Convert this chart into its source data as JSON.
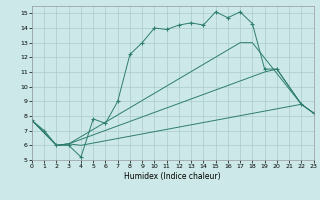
{
  "xlabel": "Humidex (Indice chaleur)",
  "xlim": [
    0,
    23
  ],
  "ylim": [
    5,
    15.5
  ],
  "yticks": [
    5,
    6,
    7,
    8,
    9,
    10,
    11,
    12,
    13,
    14,
    15
  ],
  "xticks": [
    0,
    1,
    2,
    3,
    4,
    5,
    6,
    7,
    8,
    9,
    10,
    11,
    12,
    13,
    14,
    15,
    16,
    17,
    18,
    19,
    20,
    21,
    22,
    23
  ],
  "bg_color": "#cce8e8",
  "grid_color": "#aacccc",
  "line_color": "#2e7d6e",
  "line1_x": [
    0,
    1,
    2,
    3,
    4,
    5,
    6,
    7,
    8,
    9,
    10,
    11,
    12,
    13,
    14,
    15,
    16,
    17,
    18,
    19,
    20,
    22,
    23
  ],
  "line1_y": [
    7.7,
    7.0,
    6.0,
    6.0,
    5.2,
    7.8,
    7.5,
    9.0,
    12.2,
    13.0,
    14.0,
    13.9,
    14.2,
    14.35,
    14.2,
    15.1,
    14.7,
    15.1,
    14.3,
    11.2,
    11.2,
    8.8,
    8.2
  ],
  "line2_x": [
    0,
    2,
    3,
    4,
    22,
    23
  ],
  "line2_y": [
    7.7,
    6.0,
    6.1,
    6.0,
    8.8,
    8.2
  ],
  "line3_x": [
    0,
    2,
    3,
    19,
    20,
    22,
    23
  ],
  "line3_y": [
    7.7,
    6.0,
    6.1,
    11.0,
    11.2,
    8.8,
    8.2
  ],
  "line4_x": [
    0,
    2,
    3,
    17,
    18,
    22
  ],
  "line4_y": [
    7.7,
    6.0,
    6.1,
    13.0,
    13.0,
    8.8
  ]
}
